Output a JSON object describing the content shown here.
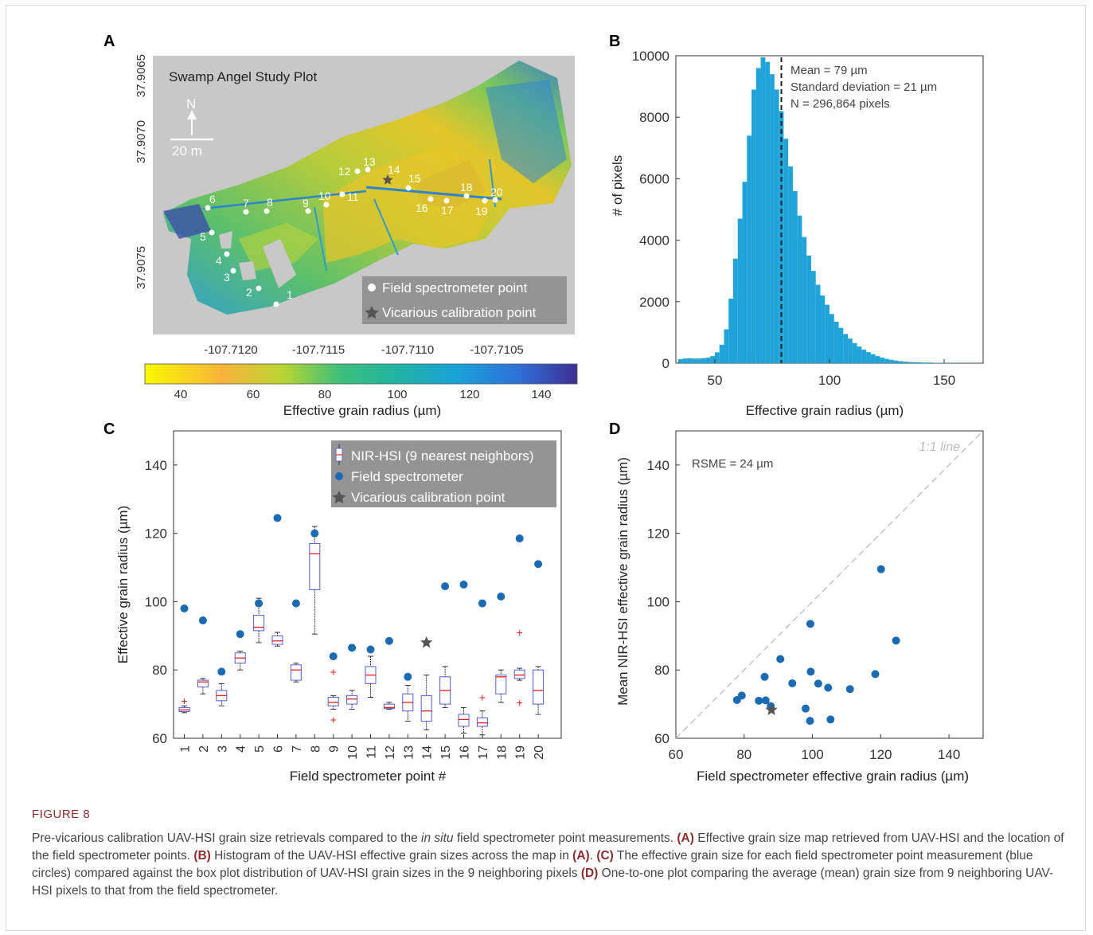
{
  "panelA": {
    "letter": "A",
    "title": "Swamp Angel Study Plot",
    "north": "N",
    "scale": "20 m",
    "y_ticks": [
      "37.9065",
      "37.9070",
      "37.9075"
    ],
    "x_ticks": [
      "-107.7120",
      "-107.7115",
      "-107.7110",
      "-107.7105"
    ],
    "points": [
      "1",
      "2",
      "3",
      "4",
      "5",
      "6",
      "7",
      "8",
      "9",
      "10",
      "11",
      "12",
      "13",
      "14",
      "15",
      "16",
      "17",
      "18",
      "19",
      "20"
    ],
    "legend": {
      "field": "Field spectrometer point",
      "vicarious": "Vicarious calibration point"
    },
    "colorbar_ticks": [
      "40",
      "60",
      "80",
      "100",
      "120",
      "140"
    ],
    "colorbar_label": "Effective grain radius (µm)"
  },
  "panelB": {
    "letter": "B",
    "stats": [
      "Mean = 79 µm",
      "Standard deviation = 21 µm",
      "N = 296,864 pixels"
    ],
    "mean": 79
  },
  "panelC": {
    "letter": "C",
    "legend": [
      "NIR-HSI (9 nearest neighbors)",
      "Field spectrometer",
      "Vicarious calibration point"
    ]
  },
  "panelD": {
    "letter": "D",
    "rsme": "RSME = 24 µm",
    "line_label": "1:1 line"
  },
  "chart_data": [
    {
      "type": "bar",
      "panel": "B",
      "xlabel": "Effective grain radius (µm)",
      "ylabel": "# of pixels",
      "xlim": [
        33,
        167
      ],
      "ylim": [
        0,
        10000
      ],
      "xticks": [
        50,
        100,
        150
      ],
      "yticks": [
        0,
        2000,
        4000,
        6000,
        8000,
        10000
      ],
      "bin_width": 1,
      "histogram": [
        [
          34,
          130
        ],
        [
          36,
          150
        ],
        [
          38,
          160
        ],
        [
          40,
          150
        ],
        [
          42,
          150
        ],
        [
          44,
          160
        ],
        [
          46,
          180
        ],
        [
          48,
          230
        ],
        [
          50,
          350
        ],
        [
          52,
          600
        ],
        [
          54,
          1100
        ],
        [
          56,
          2100
        ],
        [
          58,
          3400
        ],
        [
          60,
          4700
        ],
        [
          62,
          5900
        ],
        [
          64,
          7400
        ],
        [
          66,
          8900
        ],
        [
          68,
          9600
        ],
        [
          70,
          9950
        ],
        [
          72,
          9800
        ],
        [
          74,
          9400
        ],
        [
          76,
          8900
        ],
        [
          78,
          8200
        ],
        [
          80,
          7300
        ],
        [
          82,
          6400
        ],
        [
          84,
          5600
        ],
        [
          86,
          4800
        ],
        [
          88,
          4100
        ],
        [
          90,
          3500
        ],
        [
          92,
          3000
        ],
        [
          94,
          2550
        ],
        [
          96,
          2200
        ],
        [
          98,
          1900
        ],
        [
          100,
          1600
        ],
        [
          102,
          1350
        ],
        [
          104,
          1150
        ],
        [
          106,
          950
        ],
        [
          108,
          800
        ],
        [
          110,
          650
        ],
        [
          112,
          540
        ],
        [
          114,
          440
        ],
        [
          116,
          360
        ],
        [
          118,
          290
        ],
        [
          120,
          230
        ],
        [
          122,
          180
        ],
        [
          124,
          140
        ],
        [
          126,
          110
        ],
        [
          128,
          85
        ],
        [
          130,
          65
        ],
        [
          132,
          50
        ],
        [
          134,
          38
        ],
        [
          136,
          30
        ],
        [
          140,
          20
        ],
        [
          145,
          12
        ],
        [
          150,
          8
        ],
        [
          155,
          5
        ],
        [
          160,
          3
        ],
        [
          165,
          1
        ]
      ],
      "mean_line": 79
    },
    {
      "type": "box",
      "panel": "C",
      "xlabel": "Field spectrometer point #",
      "ylabel": "Effective grain radius (µm)",
      "ylim": [
        60,
        150
      ],
      "yticks": [
        60,
        80,
        100,
        120,
        140
      ],
      "categories": [
        "1",
        "2",
        "3",
        "4",
        "5",
        "6",
        "7",
        "8",
        "9",
        "10",
        "11",
        "12",
        "13",
        "14",
        "15",
        "16",
        "17",
        "18",
        "19",
        "20"
      ],
      "boxes": [
        {
          "min": 67.5,
          "q1": 67.8,
          "median": 68.3,
          "q3": 69,
          "max": 69.5,
          "outliers": [
            71
          ]
        },
        {
          "min": 73,
          "q1": 75,
          "median": 76.5,
          "q3": 77,
          "max": 77.5,
          "outliers": []
        },
        {
          "min": 69.5,
          "q1": 71,
          "median": 72.5,
          "q3": 74,
          "max": 76,
          "outliers": []
        },
        {
          "min": 80,
          "q1": 82,
          "median": 83.5,
          "q3": 85,
          "max": 85.5,
          "outliers": []
        },
        {
          "min": 88,
          "q1": 91.5,
          "median": 92.5,
          "q3": 96,
          "max": 101,
          "outliers": []
        },
        {
          "min": 87,
          "q1": 87.5,
          "median": 88.5,
          "q3": 90,
          "max": 91,
          "outliers": []
        },
        {
          "min": 76.5,
          "q1": 77,
          "median": 80,
          "q3": 81.5,
          "max": 82,
          "outliers": []
        },
        {
          "min": 90.5,
          "q1": 103.5,
          "median": 114,
          "q3": 117,
          "max": 122,
          "outliers": []
        },
        {
          "min": 68.5,
          "q1": 69.5,
          "median": 70.5,
          "q3": 72,
          "max": 72.5,
          "outliers": [
            79.5,
            65.5
          ]
        },
        {
          "min": 68.5,
          "q1": 70,
          "median": 71.5,
          "q3": 72.5,
          "max": 74,
          "outliers": []
        },
        {
          "min": 72,
          "q1": 76,
          "median": 78.5,
          "q3": 81,
          "max": 84,
          "outliers": []
        },
        {
          "min": 68.5,
          "q1": 68.7,
          "median": 69,
          "q3": 70,
          "max": 70.5,
          "outliers": []
        },
        {
          "min": 65,
          "q1": 68,
          "median": 70.5,
          "q3": 73,
          "max": 75.5,
          "outliers": []
        },
        {
          "min": 62.5,
          "q1": 65,
          "median": 68,
          "q3": 72.5,
          "max": 78.5,
          "outliers": []
        },
        {
          "min": 69,
          "q1": 70,
          "median": 74,
          "q3": 78,
          "max": 81,
          "outliers": []
        },
        {
          "min": 61.5,
          "q1": 63.5,
          "median": 65.5,
          "q3": 67,
          "max": 69,
          "outliers": []
        },
        {
          "min": 61,
          "q1": 63.5,
          "median": 64.5,
          "q3": 66,
          "max": 68,
          "outliers": [
            72
          ]
        },
        {
          "min": 70.5,
          "q1": 73,
          "median": 78,
          "q3": 78.5,
          "max": 80,
          "outliers": []
        },
        {
          "min": 77,
          "q1": 77.5,
          "median": 78.5,
          "q3": 80,
          "max": 80.5,
          "outliers": [
            91,
            70.5
          ]
        },
        {
          "min": 67,
          "q1": 70,
          "median": 74,
          "q3": 80,
          "max": 81,
          "outliers": []
        }
      ],
      "field_spectrometer": [
        98,
        94.5,
        79.5,
        90.5,
        99.5,
        124.5,
        99.5,
        120,
        84,
        86.5,
        86,
        88.5,
        78,
        null,
        104.5,
        105,
        99.5,
        101.5,
        118.5,
        111
      ],
      "vicarious": {
        "point": "14",
        "value": 88
      }
    },
    {
      "type": "scatter",
      "panel": "D",
      "xlabel": "Field spectrometer effective grain radius (µm)",
      "ylabel": "Mean NIR-HSI effective grain radius (µm)",
      "xlim": [
        60,
        150
      ],
      "ylim": [
        60,
        150
      ],
      "xticks": [
        60,
        80,
        100,
        120,
        140
      ],
      "yticks": [
        60,
        80,
        100,
        120,
        140
      ],
      "points": [
        [
          77.9,
          71.2
        ],
        [
          79.3,
          72.5
        ],
        [
          84.3,
          71
        ],
        [
          86.3,
          71.1
        ],
        [
          86,
          78
        ],
        [
          87.8,
          69.4
        ],
        [
          90.6,
          83.2
        ],
        [
          94.1,
          76.1
        ],
        [
          98,
          68.7
        ],
        [
          99.3,
          65.1
        ],
        [
          99.4,
          93.5
        ],
        [
          99.5,
          79.5
        ],
        [
          101.7,
          76
        ],
        [
          104.6,
          74.8
        ],
        [
          105.3,
          65.5
        ],
        [
          111,
          74.4
        ],
        [
          118.4,
          78.8
        ],
        [
          120.1,
          109.5
        ],
        [
          124.5,
          88.6
        ]
      ],
      "vicarious": [
        88,
        68.3
      ]
    }
  ],
  "caption": {
    "figure_label": "FIGURE 8",
    "s1": "Pre-vicarious calibration UAV-HSI grain size retrievals compared to the ",
    "s1_italic": "in situ",
    "s2": " field spectrometer point measurements. ",
    "tagA": "(A)",
    "s3": " Effective grain size map retrieved from UAV-HSI and the location of the field spectrometer points. ",
    "tagB": "(B)",
    "s4": " Histogram of the UAV-HSI effective grain sizes across the map in ",
    "tagA2": "(A)",
    "s5": ". ",
    "tagC": "(C)",
    "s6": " The effective grain size for each field spectrometer point measurement (blue circles) compared against the box plot distribution of UAV-HSI grain sizes in the 9 neighboring pixels ",
    "tagD": "(D)",
    "s7": " One-to-one plot comparing the average (mean) grain size from 9 neighboring UAV-HSI pixels to that from the field spectrometer."
  }
}
